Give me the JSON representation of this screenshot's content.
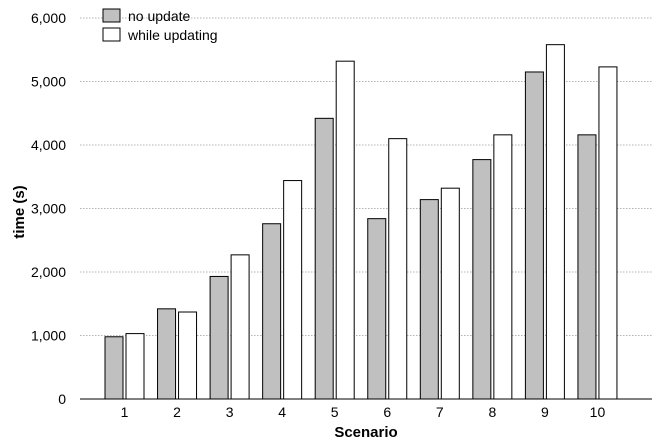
{
  "chart_data": {
    "type": "bar",
    "title": "",
    "xlabel": "Scenario",
    "ylabel": "time (s)",
    "ylim": [
      0,
      6000
    ],
    "yticks": [
      "0",
      "1,000",
      "2,000",
      "3,000",
      "4,000",
      "5,000",
      "6,000"
    ],
    "categories": [
      "1",
      "2",
      "3",
      "4",
      "5",
      "6",
      "7",
      "8",
      "9",
      "10"
    ],
    "series": [
      {
        "name": "no update",
        "color": "#c0c0c0",
        "values": [
          980,
          1420,
          1930,
          2760,
          4420,
          2840,
          3140,
          3770,
          5150,
          4160
        ]
      },
      {
        "name": "while updating",
        "color": "#ffffff",
        "values": [
          1030,
          1370,
          2270,
          3440,
          5320,
          4100,
          3320,
          4160,
          5580,
          5230
        ]
      }
    ],
    "grid": "horizontal-dotted",
    "legend_position": "top-left"
  }
}
